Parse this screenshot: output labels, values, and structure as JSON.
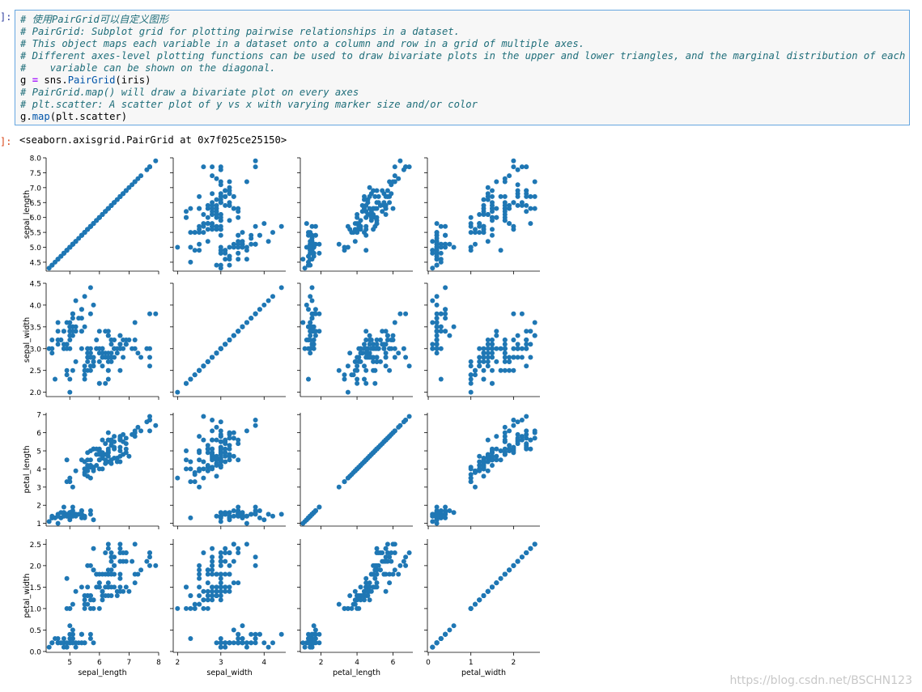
{
  "input_prompt": "]:",
  "output_prompt": "]:",
  "code_lines": [
    {
      "kind": "comment",
      "text": "# 使用PairGrid可以自定义图形"
    },
    {
      "kind": "comment",
      "text": "# PairGrid: Subplot grid for plotting pairwise relationships in a dataset."
    },
    {
      "kind": "comment",
      "text": "# This object maps each variable in a dataset onto a column and row in a grid of multiple axes."
    },
    {
      "kind": "comment",
      "text": "# Different axes-level plotting functions can be used to draw bivariate plots in the upper and lower triangles, and the marginal distribution of each"
    },
    {
      "kind": "comment",
      "text": "#    variable can be shown on the diagonal."
    },
    {
      "kind": "assign",
      "var": "g",
      "op": "=",
      "call_prefix": "sns.",
      "func": "PairGrid",
      "args": "(iris)"
    },
    {
      "kind": "comment",
      "text": "# PairGrid.map() will draw a bivariate plot on every axes"
    },
    {
      "kind": "comment",
      "text": "# plt.scatter: A scatter plot of y vs x with varying marker size and/or color"
    },
    {
      "kind": "call",
      "obj": "g.",
      "func": "map",
      "args": "(plt.scatter)"
    }
  ],
  "output_repr": "<seaborn.axisgrid.PairGrid at 0x7f025ce25150>",
  "watermark": "https://blog.csdn.net/BSCHN123",
  "chart_data": {
    "type": "scatter",
    "variables": [
      "sepal_length",
      "sepal_width",
      "petal_length",
      "petal_width"
    ],
    "ranges": {
      "sepal_length": [
        4.2,
        8.0
      ],
      "sepal_width": [
        1.9,
        4.5
      ],
      "petal_length": [
        0.85,
        7.1
      ],
      "petal_width": [
        -0.02,
        2.62
      ]
    },
    "ticks": {
      "sepal_length_y": [
        "4.5",
        "5.0",
        "5.5",
        "6.0",
        "6.5",
        "7.0",
        "7.5",
        "8.0"
      ],
      "sepal_width_y": [
        "2.0",
        "2.5",
        "3.0",
        "3.5",
        "4.0",
        "4.5"
      ],
      "petal_length_y": [
        "1",
        "2",
        "3",
        "4",
        "5",
        "6",
        "7"
      ],
      "petal_width_y": [
        "0.0",
        "0.5",
        "1.0",
        "1.5",
        "2.0",
        "2.5"
      ],
      "sepal_length_x": [
        "5",
        "6",
        "7",
        "8"
      ],
      "sepal_width_x": [
        "2",
        "3",
        "4"
      ],
      "petal_length_x": [
        "2",
        "4",
        "6"
      ],
      "petal_width_x": [
        "0",
        "1",
        "2"
      ]
    },
    "marker_color": "#1f77b4",
    "grid": false,
    "records": [
      [
        5.1,
        3.5,
        1.4,
        0.2
      ],
      [
        4.9,
        3.0,
        1.4,
        0.2
      ],
      [
        4.7,
        3.2,
        1.3,
        0.2
      ],
      [
        4.6,
        3.1,
        1.5,
        0.2
      ],
      [
        5.0,
        3.6,
        1.4,
        0.2
      ],
      [
        5.4,
        3.9,
        1.7,
        0.4
      ],
      [
        4.6,
        3.4,
        1.4,
        0.3
      ],
      [
        5.0,
        3.4,
        1.5,
        0.2
      ],
      [
        4.4,
        2.9,
        1.4,
        0.2
      ],
      [
        4.9,
        3.1,
        1.5,
        0.1
      ],
      [
        5.4,
        3.7,
        1.5,
        0.2
      ],
      [
        4.8,
        3.4,
        1.6,
        0.2
      ],
      [
        4.8,
        3.0,
        1.4,
        0.1
      ],
      [
        4.3,
        3.0,
        1.1,
        0.1
      ],
      [
        5.8,
        4.0,
        1.2,
        0.2
      ],
      [
        5.7,
        4.4,
        1.5,
        0.4
      ],
      [
        5.4,
        3.9,
        1.3,
        0.4
      ],
      [
        5.1,
        3.5,
        1.4,
        0.3
      ],
      [
        5.7,
        3.8,
        1.7,
        0.3
      ],
      [
        5.1,
        3.8,
        1.5,
        0.3
      ],
      [
        5.4,
        3.4,
        1.7,
        0.2
      ],
      [
        5.1,
        3.7,
        1.5,
        0.4
      ],
      [
        4.6,
        3.6,
        1.0,
        0.2
      ],
      [
        5.1,
        3.3,
        1.7,
        0.5
      ],
      [
        4.8,
        3.4,
        1.9,
        0.2
      ],
      [
        5.0,
        3.0,
        1.6,
        0.2
      ],
      [
        5.0,
        3.4,
        1.6,
        0.4
      ],
      [
        5.2,
        3.5,
        1.5,
        0.2
      ],
      [
        5.2,
        3.4,
        1.4,
        0.2
      ],
      [
        4.7,
        3.2,
        1.6,
        0.2
      ],
      [
        4.8,
        3.1,
        1.6,
        0.2
      ],
      [
        5.4,
        3.4,
        1.5,
        0.4
      ],
      [
        5.2,
        4.1,
        1.5,
        0.1
      ],
      [
        5.5,
        4.2,
        1.4,
        0.2
      ],
      [
        4.9,
        3.1,
        1.5,
        0.2
      ],
      [
        5.0,
        3.2,
        1.2,
        0.2
      ],
      [
        5.5,
        3.5,
        1.3,
        0.2
      ],
      [
        4.9,
        3.6,
        1.4,
        0.1
      ],
      [
        4.4,
        3.0,
        1.3,
        0.2
      ],
      [
        5.1,
        3.4,
        1.5,
        0.2
      ],
      [
        5.0,
        3.5,
        1.3,
        0.3
      ],
      [
        4.5,
        2.3,
        1.3,
        0.3
      ],
      [
        4.4,
        3.2,
        1.3,
        0.2
      ],
      [
        5.0,
        3.5,
        1.6,
        0.6
      ],
      [
        5.1,
        3.8,
        1.9,
        0.4
      ],
      [
        4.8,
        3.0,
        1.4,
        0.3
      ],
      [
        5.1,
        3.8,
        1.6,
        0.2
      ],
      [
        4.6,
        3.2,
        1.4,
        0.2
      ],
      [
        5.3,
        3.7,
        1.5,
        0.2
      ],
      [
        5.0,
        3.3,
        1.4,
        0.2
      ],
      [
        7.0,
        3.2,
        4.7,
        1.4
      ],
      [
        6.4,
        3.2,
        4.5,
        1.5
      ],
      [
        6.9,
        3.1,
        4.9,
        1.5
      ],
      [
        5.5,
        2.3,
        4.0,
        1.3
      ],
      [
        6.5,
        2.8,
        4.6,
        1.5
      ],
      [
        5.7,
        2.8,
        4.5,
        1.3
      ],
      [
        6.3,
        3.3,
        4.7,
        1.6
      ],
      [
        4.9,
        2.4,
        3.3,
        1.0
      ],
      [
        6.6,
        2.9,
        4.6,
        1.3
      ],
      [
        5.2,
        2.7,
        3.9,
        1.4
      ],
      [
        5.0,
        2.0,
        3.5,
        1.0
      ],
      [
        5.9,
        3.0,
        4.2,
        1.5
      ],
      [
        6.0,
        2.2,
        4.0,
        1.0
      ],
      [
        6.1,
        2.9,
        4.7,
        1.4
      ],
      [
        5.6,
        2.9,
        3.6,
        1.3
      ],
      [
        6.7,
        3.1,
        4.4,
        1.4
      ],
      [
        5.6,
        3.0,
        4.5,
        1.5
      ],
      [
        5.8,
        2.7,
        4.1,
        1.0
      ],
      [
        6.2,
        2.2,
        4.5,
        1.5
      ],
      [
        5.6,
        2.5,
        3.9,
        1.1
      ],
      [
        5.9,
        3.2,
        4.8,
        1.8
      ],
      [
        6.1,
        2.8,
        4.0,
        1.3
      ],
      [
        6.3,
        2.5,
        4.9,
        1.5
      ],
      [
        6.1,
        2.8,
        4.7,
        1.2
      ],
      [
        6.4,
        2.9,
        4.3,
        1.3
      ],
      [
        6.6,
        3.0,
        4.4,
        1.4
      ],
      [
        6.8,
        2.8,
        4.8,
        1.4
      ],
      [
        6.7,
        3.0,
        5.0,
        1.7
      ],
      [
        6.0,
        2.9,
        4.5,
        1.5
      ],
      [
        5.7,
        2.6,
        3.5,
        1.0
      ],
      [
        5.5,
        2.4,
        3.8,
        1.1
      ],
      [
        5.5,
        2.4,
        3.7,
        1.0
      ],
      [
        5.8,
        2.7,
        3.9,
        1.2
      ],
      [
        6.0,
        2.7,
        5.1,
        1.6
      ],
      [
        5.4,
        3.0,
        4.5,
        1.5
      ],
      [
        6.0,
        3.4,
        4.5,
        1.6
      ],
      [
        6.7,
        3.1,
        4.7,
        1.5
      ],
      [
        6.3,
        2.3,
        4.4,
        1.3
      ],
      [
        5.6,
        3.0,
        4.1,
        1.3
      ],
      [
        5.5,
        2.5,
        4.0,
        1.3
      ],
      [
        5.5,
        2.6,
        4.4,
        1.2
      ],
      [
        6.1,
        3.0,
        4.6,
        1.4
      ],
      [
        5.8,
        2.6,
        4.0,
        1.2
      ],
      [
        5.0,
        2.3,
        3.3,
        1.0
      ],
      [
        5.6,
        2.7,
        4.2,
        1.3
      ],
      [
        5.7,
        3.0,
        4.2,
        1.2
      ],
      [
        5.7,
        2.9,
        4.2,
        1.3
      ],
      [
        6.2,
        2.9,
        4.3,
        1.3
      ],
      [
        5.1,
        2.5,
        3.0,
        1.1
      ],
      [
        5.7,
        2.8,
        4.1,
        1.3
      ],
      [
        6.3,
        3.3,
        6.0,
        2.5
      ],
      [
        5.8,
        2.7,
        5.1,
        1.9
      ],
      [
        7.1,
        3.0,
        5.9,
        2.1
      ],
      [
        6.3,
        2.9,
        5.6,
        1.8
      ],
      [
        6.5,
        3.0,
        5.8,
        2.2
      ],
      [
        7.6,
        3.0,
        6.6,
        2.1
      ],
      [
        4.9,
        2.5,
        4.5,
        1.7
      ],
      [
        7.3,
        2.9,
        6.3,
        1.8
      ],
      [
        6.7,
        2.5,
        5.8,
        1.8
      ],
      [
        7.2,
        3.6,
        6.1,
        2.5
      ],
      [
        6.5,
        3.2,
        5.1,
        2.0
      ],
      [
        6.4,
        2.7,
        5.3,
        1.9
      ],
      [
        6.8,
        3.0,
        5.5,
        2.1
      ],
      [
        5.7,
        2.5,
        5.0,
        2.0
      ],
      [
        5.8,
        2.8,
        5.1,
        2.4
      ],
      [
        6.4,
        3.2,
        5.3,
        2.3
      ],
      [
        6.5,
        3.0,
        5.5,
        1.8
      ],
      [
        7.7,
        3.8,
        6.7,
        2.2
      ],
      [
        7.7,
        2.6,
        6.9,
        2.3
      ],
      [
        6.0,
        2.2,
        5.0,
        1.5
      ],
      [
        6.9,
        3.2,
        5.7,
        2.3
      ],
      [
        5.6,
        2.8,
        4.9,
        2.0
      ],
      [
        7.7,
        2.8,
        6.7,
        2.0
      ],
      [
        6.3,
        2.7,
        4.9,
        1.8
      ],
      [
        6.7,
        3.3,
        5.7,
        2.1
      ],
      [
        7.2,
        3.2,
        6.0,
        1.8
      ],
      [
        6.2,
        2.8,
        4.8,
        1.8
      ],
      [
        6.1,
        3.0,
        4.9,
        1.8
      ],
      [
        6.4,
        2.8,
        5.6,
        2.1
      ],
      [
        7.2,
        3.0,
        5.8,
        1.6
      ],
      [
        7.4,
        2.8,
        6.1,
        1.9
      ],
      [
        7.9,
        3.8,
        6.4,
        2.0
      ],
      [
        6.4,
        2.8,
        5.6,
        2.2
      ],
      [
        6.3,
        2.8,
        5.1,
        1.5
      ],
      [
        6.1,
        2.6,
        5.6,
        1.4
      ],
      [
        7.7,
        3.0,
        6.1,
        2.3
      ],
      [
        6.3,
        3.4,
        5.6,
        2.4
      ],
      [
        6.4,
        3.1,
        5.5,
        1.8
      ],
      [
        6.0,
        3.0,
        4.8,
        1.8
      ],
      [
        6.9,
        3.1,
        5.4,
        2.1
      ],
      [
        6.7,
        3.1,
        5.6,
        2.4
      ],
      [
        6.9,
        3.1,
        5.1,
        2.3
      ],
      [
        5.8,
        2.7,
        5.1,
        1.9
      ],
      [
        6.8,
        3.2,
        5.9,
        2.3
      ],
      [
        6.7,
        3.3,
        5.7,
        2.5
      ],
      [
        6.7,
        3.0,
        5.2,
        2.3
      ],
      [
        6.3,
        2.5,
        5.0,
        1.9
      ],
      [
        6.5,
        3.0,
        5.2,
        2.0
      ],
      [
        6.2,
        3.4,
        5.4,
        2.3
      ],
      [
        5.9,
        3.0,
        5.1,
        1.8
      ]
    ]
  }
}
